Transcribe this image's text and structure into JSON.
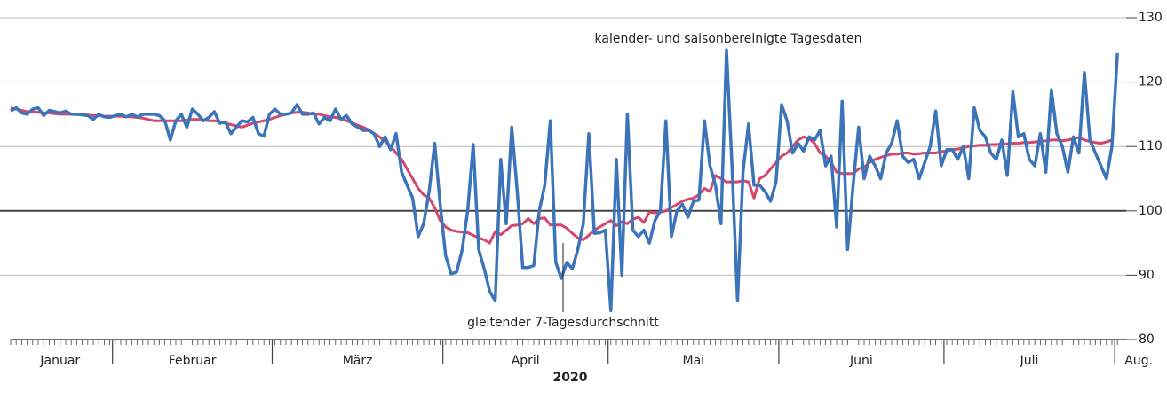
{
  "chart_data": {
    "type": "line",
    "xlabel": "2020",
    "months": [
      {
        "label": "Januar",
        "days": 19
      },
      {
        "label": "Februar",
        "days": 29
      },
      {
        "label": "März",
        "days": 31
      },
      {
        "label": "April",
        "days": 30
      },
      {
        "label": "Mai",
        "days": 31
      },
      {
        "label": "Juni",
        "days": 30
      },
      {
        "label": "Juli",
        "days": 31
      },
      {
        "label": "Aug.",
        "days": 1
      }
    ],
    "ylim": [
      80,
      130
    ],
    "yticks": [
      80,
      90,
      100,
      110,
      120,
      130
    ],
    "grid": true,
    "annotations": [
      "kalender- und saisonbereinigte Tagesdaten",
      "gleitender 7-Tagesdurchschnitt"
    ],
    "series": [
      {
        "name": "kalender- und saisonbereinigte Tagesdaten",
        "color": "#3b74b9",
        "values": [
          115.5,
          116,
          115.2,
          115,
          115.8,
          116,
          114.8,
          115.6,
          115.4,
          115.2,
          115.5,
          115,
          115,
          114.9,
          114.8,
          114.2,
          115,
          114.6,
          114.5,
          114.8,
          115,
          114.6,
          115,
          114.6,
          115,
          115,
          115,
          114.8,
          114,
          111,
          114,
          115,
          113,
          115.8,
          115,
          114,
          114.5,
          115.4,
          113.6,
          113.8,
          112,
          113,
          114,
          113.8,
          114.5,
          112,
          111.6,
          115,
          115.8,
          115,
          115,
          115.2,
          116.5,
          115,
          115,
          115.2,
          113.5,
          114.5,
          114,
          115.8,
          114.2,
          114.8,
          113.5,
          113,
          112.5,
          112.5,
          112,
          110,
          111.5,
          109.5,
          112,
          106,
          104,
          102,
          96,
          98,
          103,
          110.5,
          101,
          93,
          90.2,
          90.5,
          94,
          100,
          110.3,
          94,
          91,
          87.5,
          86,
          108,
          98,
          113,
          103,
          91.2,
          91.2,
          91.5,
          100,
          104,
          114,
          92,
          89.5,
          92,
          91,
          94,
          98,
          112,
          96.5,
          96.6,
          97,
          84.5,
          108,
          90,
          115,
          97,
          96,
          97,
          95,
          98.5,
          100,
          114,
          96,
          100,
          101,
          99,
          101.5,
          101.7,
          114,
          107,
          104,
          98,
          125,
          107,
          86,
          106,
          113.5,
          104,
          104,
          103,
          101.5,
          104.5,
          116.5,
          114,
          109,
          110.5,
          109.3,
          111.5,
          111,
          112.5,
          107,
          108.5,
          97.5,
          117,
          94,
          104,
          113,
          105,
          108.5,
          107,
          105,
          109,
          110.5,
          114,
          108.5,
          107.5,
          108,
          105,
          107.5,
          110,
          115.5,
          107,
          109.5,
          109.5,
          108,
          110,
          105,
          116,
          112.5,
          111.5,
          109,
          108,
          111,
          105.5,
          118.5,
          111.5,
          112,
          108,
          107,
          112,
          106,
          118.8,
          112,
          110,
          106,
          111.5,
          109,
          121.5,
          111,
          109,
          107,
          105,
          110,
          124.5
        ]
      },
      {
        "name": "gleitender 7-Tagesdurchschnitt",
        "color": "#d4466c",
        "values": [
          116,
          115.8,
          115.6,
          115.4,
          115.4,
          115.3,
          115.2,
          115.2,
          115.1,
          115,
          115,
          115,
          115,
          114.9,
          114.9,
          114.8,
          114.8,
          114.7,
          114.7,
          114.7,
          114.7,
          114.6,
          114.6,
          114.5,
          114.4,
          114.2,
          114,
          114,
          114,
          114,
          114,
          114,
          114.1,
          114.2,
          114.2,
          114.1,
          114,
          114,
          113.8,
          113.6,
          113.4,
          113.2,
          113,
          113.3,
          113.6,
          113.8,
          114,
          114.2,
          114.5,
          114.8,
          115,
          115.2,
          115.3,
          115.3,
          115.2,
          115,
          115,
          114.8,
          114.6,
          114.5,
          114.3,
          114,
          113.7,
          113.3,
          113,
          112.6,
          112,
          111.5,
          110.8,
          110,
          109,
          108,
          106.5,
          105,
          103.5,
          102.5,
          102,
          100.5,
          98.5,
          97.5,
          97,
          96.8,
          96.7,
          96.6,
          96.2,
          95.8,
          95.5,
          95,
          96.8,
          96.3,
          97,
          97.7,
          97.8,
          98,
          98.8,
          98,
          98.8,
          98.9,
          97.8,
          97.8,
          97.8,
          97.3,
          96.5,
          95.8,
          95.5,
          96.2,
          97,
          97.5,
          98,
          98.5,
          97.7,
          98.3,
          98,
          98.7,
          99,
          98.2,
          99.8,
          99.7,
          99.8,
          100,
          100.5,
          101,
          101.5,
          101.8,
          102,
          102.5,
          103.5,
          103,
          105.5,
          105,
          104.5,
          104.5,
          104.5,
          104.7,
          104.5,
          102,
          105,
          105.5,
          106.5,
          107.5,
          108.5,
          109,
          110,
          111,
          111.5,
          111.2,
          110.5,
          109,
          108.5,
          107.5,
          106,
          105.8,
          105.8,
          105.8,
          106.5,
          106.8,
          107.5,
          108,
          108.3,
          108.6,
          108.8,
          108.8,
          109,
          109,
          108.8,
          108.9,
          109,
          109,
          109,
          109.2,
          109.3,
          109.5,
          109.6,
          109.8,
          110,
          110.1,
          110.2,
          110.2,
          110.3,
          110.3,
          110.4,
          110.4,
          110.5,
          110.5,
          110.6,
          110.6,
          110.7,
          110.8,
          110.9,
          111,
          111,
          110.9,
          111,
          111.2,
          111.4,
          111,
          110.8,
          110.6,
          110.5,
          110.7,
          111,
          null
        ]
      }
    ]
  }
}
